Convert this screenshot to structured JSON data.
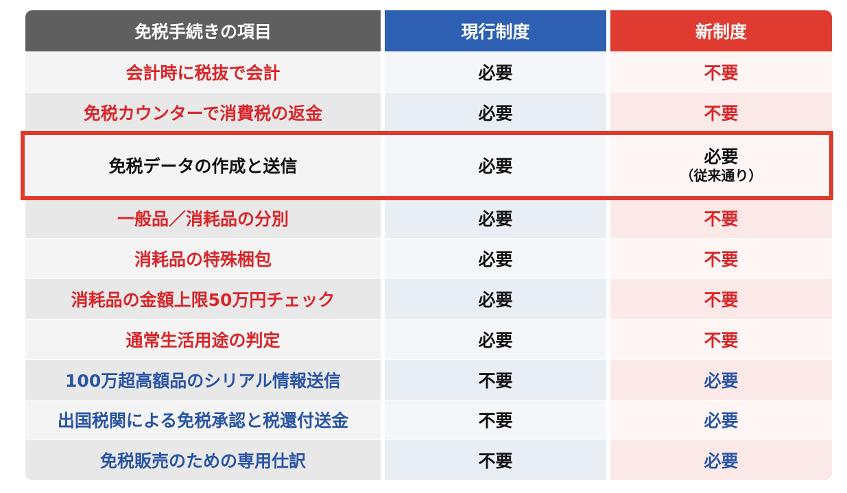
{
  "header": {
    "item": "免税手続きの項目",
    "current": "現行制度",
    "new": "新制度"
  },
  "colors": {
    "header_gray": "#5f5f5f",
    "header_blue": "#2d5fb3",
    "header_red": "#df3b30",
    "text_red": "#d8262a",
    "text_blue": "#2a55a5",
    "highlight_border": "#e03a2c"
  },
  "rows": [
    {
      "item": "会計時に税抜で会計",
      "current": "必要",
      "new": "不要"
    },
    {
      "item": "免税カウンターで消費税の返金",
      "current": "必要",
      "new": "不要"
    },
    {
      "item": "免税データの作成と送信",
      "current": "必要",
      "new": "必要",
      "new_note": "（従来通り）"
    },
    {
      "item": "一般品／消耗品の分別",
      "current": "必要",
      "new": "不要"
    },
    {
      "item": "消耗品の特殊梱包",
      "current": "必要",
      "new": "不要"
    },
    {
      "item": "消耗品の金額上限50万円チェック",
      "current": "必要",
      "new": "不要"
    },
    {
      "item": "通常生活用途の判定",
      "current": "必要",
      "new": "不要"
    },
    {
      "item": "100万超高額品のシリアル情報送信",
      "current": "不要",
      "new": "必要"
    },
    {
      "item": "出国税関による免税承認と税還付送金",
      "current": "不要",
      "new": "必要"
    },
    {
      "item": "免税販売のための専用仕訳",
      "current": "不要",
      "new": "必要"
    }
  ]
}
